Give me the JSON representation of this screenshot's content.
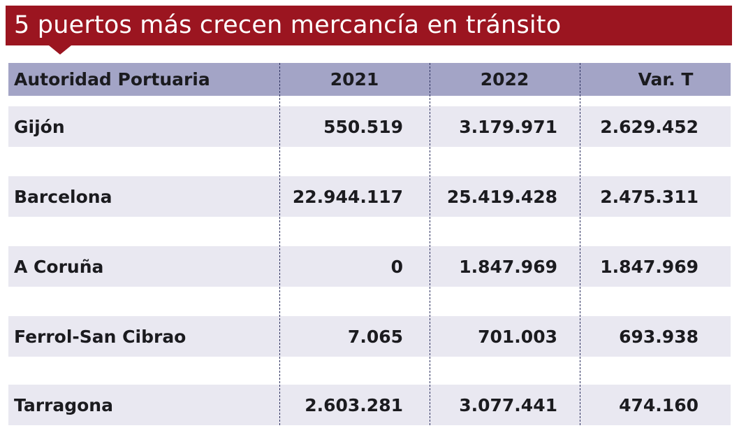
{
  "title": "5 puertos más crecen mercancía en tránsito",
  "colors": {
    "title_bg": "#9b1520",
    "header_bg": "#a3a4c6",
    "row_bg": "#e9e8f1"
  },
  "chart_data": {
    "type": "table",
    "title": "5 puertos más crecen mercancía en tránsito",
    "columns": [
      "Autoridad Portuaria",
      "2021",
      "2022",
      "Var. T"
    ],
    "rows": [
      [
        "Gijón",
        "550.519",
        "3.179.971",
        "2.629.452"
      ],
      [
        "Barcelona",
        "22.944.117",
        "25.419.428",
        "2.475.311"
      ],
      [
        "A Coruña",
        "0",
        "1.847.969",
        "1.847.969"
      ],
      [
        "Ferrol-San Cibrao",
        "7.065",
        "701.003",
        "693.938"
      ],
      [
        "Tarragona",
        "2.603.281",
        "3.077.441",
        "474.160"
      ]
    ]
  }
}
